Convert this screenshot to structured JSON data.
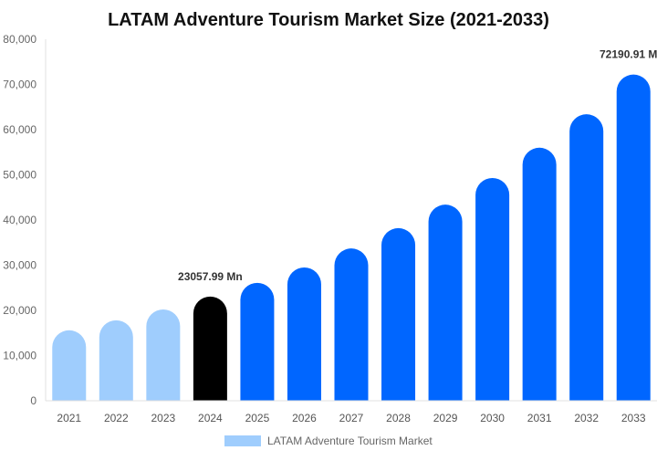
{
  "chart_data": {
    "type": "bar",
    "title": "LATAM Adventure Tourism Market Size (2021-2033)",
    "xlabel": "",
    "ylabel": "",
    "ylim": [
      0,
      80000
    ],
    "yticks": [
      0,
      10000,
      20000,
      30000,
      40000,
      50000,
      60000,
      70000,
      80000
    ],
    "ytick_labels": [
      "0",
      "10,000",
      "20,000",
      "30,000",
      "40,000",
      "50,000",
      "60,000",
      "70,000",
      "80,000"
    ],
    "grid": false,
    "categories": [
      "2021",
      "2022",
      "2023",
      "2024",
      "2025",
      "2026",
      "2027",
      "2028",
      "2029",
      "2030",
      "2031",
      "2032",
      "2033"
    ],
    "series": [
      {
        "name": "LATAM Adventure Tourism Market",
        "values": [
          15600,
          17800,
          20200,
          23057.99,
          26100,
          29500,
          33700,
          38200,
          43400,
          49300,
          56000,
          63400,
          72190.91
        ]
      }
    ],
    "bar_colors": [
      "#9fcdfd",
      "#9fcdfd",
      "#9fcdfd",
      "#000000",
      "#0066ff",
      "#0066ff",
      "#0066ff",
      "#0066ff",
      "#0066ff",
      "#0066ff",
      "#0066ff",
      "#0066ff",
      "#0066ff"
    ],
    "data_labels": [
      {
        "category": "2024",
        "text": "23057.99 Mn"
      },
      {
        "category": "2033",
        "text": "72190.91 M"
      }
    ],
    "legend": {
      "position": "bottom",
      "label": "LATAM Adventure Tourism Market",
      "color": "#9fcdfd"
    }
  }
}
